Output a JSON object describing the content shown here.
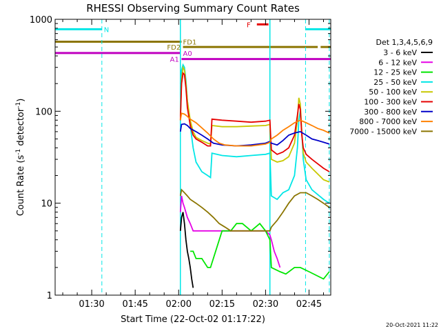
{
  "chart_data": {
    "type": "line",
    "title": "RHESSI Observing Summary Count Rates",
    "xlabel": "Start Time (22-Oct-02 01:17:22)",
    "ylabel_main": "Count Rate (s",
    "ylabel_sup": "-1",
    "ylabel_tail": " detector",
    "ylabel_sup2": "-1",
    "ylabel_close": ")",
    "yscale": "log",
    "ylim": [
      1,
      1000
    ],
    "xlim_minutes": [
      77.37,
      172.5
    ],
    "x_ticks": [
      {
        "label": "01:30",
        "t": 90
      },
      {
        "label": "01:45",
        "t": 105
      },
      {
        "label": "02:00",
        "t": 120
      },
      {
        "label": "02:15",
        "t": 135
      },
      {
        "label": "02:30",
        "t": 150
      },
      {
        "label": "02:45",
        "t": 165
      }
    ],
    "y_ticks": [
      {
        "label": "1",
        "v": 1
      },
      {
        "label": "10",
        "v": 10
      },
      {
        "label": "100",
        "v": 100
      },
      {
        "label": "1000",
        "v": 1000
      }
    ],
    "legend": {
      "header": "Det 1,3,4,5,6,9",
      "placement": "right",
      "entries": [
        {
          "label": "3 - 6 keV",
          "color": "#000000"
        },
        {
          "label": "6 - 12 keV",
          "color": "#e600e6"
        },
        {
          "label": "12 - 25 keV",
          "color": "#00e600"
        },
        {
          "label": "25 - 50 keV",
          "color": "#00e6e6"
        },
        {
          "label": "50 - 100 keV",
          "color": "#c8c800"
        },
        {
          "label": "100 - 300 keV",
          "color": "#e60000"
        },
        {
          "label": "300 - 800 keV",
          "color": "#0000c8"
        },
        {
          "label": "800 - 7000 keV",
          "color": "#ff8000"
        },
        {
          "label": "7000 - 15000 keV",
          "color": "#8b7500"
        }
      ]
    },
    "flags": [
      {
        "label": "N",
        "color": "#00e6e6",
        "y": 780,
        "segments": [
          [
            77.37,
            93.5
          ],
          [
            163.8,
            172.5
          ]
        ],
        "label_t": 94.2,
        "label_y": 780
      },
      {
        "label": "F",
        "color": "#e60000",
        "y": 880,
        "segments": [
          [
            147.0,
            151.0
          ]
        ],
        "label_t": 143.5,
        "label_y": 880
      },
      {
        "label": "FD1",
        "color": "#8b7500",
        "y": 570,
        "segments": [
          [
            77.37,
            121.0
          ]
        ],
        "label_t": 121.5,
        "label_y": 570
      },
      {
        "label": "FD2",
        "color": "#8b7500",
        "y": 500,
        "segments": [
          [
            121.5,
            168.0
          ],
          [
            169.0,
            172.5
          ]
        ],
        "label_t": 116.0,
        "label_y": 500
      },
      {
        "label": "A0",
        "color": "#c000c0",
        "y": 430,
        "segments": [
          [
            77.37,
            120.5
          ]
        ],
        "label_t": 121.5,
        "label_y": 430
      },
      {
        "label": "A1",
        "color": "#c000c0",
        "y": 370,
        "segments": [
          [
            121.0,
            172.5
          ]
        ],
        "label_t": 117.0,
        "label_y": 370
      }
    ],
    "vlines": [
      93.5,
      163.8,
      172.0
    ],
    "solid_vlines": [
      120.6,
      151.5
    ],
    "series": [
      {
        "name": "3 - 6 keV",
        "color": "#000000",
        "points": [
          [
            120.6,
            5
          ],
          [
            121,
            7
          ],
          [
            121.5,
            8
          ],
          [
            122,
            6
          ],
          [
            122.5,
            4
          ],
          [
            123,
            3
          ],
          [
            123.5,
            2.5
          ],
          [
            124,
            2
          ],
          [
            124.5,
            1.5
          ],
          [
            125,
            1.2
          ]
        ]
      },
      {
        "name": "6 - 12 keV",
        "color": "#e600e6",
        "points": [
          [
            120.6,
            8
          ],
          [
            121,
            12
          ],
          [
            121.5,
            10
          ],
          [
            122,
            9
          ],
          [
            123,
            7
          ],
          [
            124,
            6
          ],
          [
            125,
            5
          ],
          [
            126,
            5
          ],
          [
            128,
            5
          ],
          [
            130,
            5
          ],
          [
            135,
            5
          ],
          [
            140,
            5
          ],
          [
            145,
            5
          ],
          [
            150,
            5
          ],
          [
            151.5,
            4.5
          ],
          [
            152,
            4
          ],
          [
            153,
            3
          ],
          [
            154,
            2.5
          ],
          [
            155,
            2
          ]
        ]
      },
      {
        "name": "12 - 25 keV",
        "color": "#00e600",
        "points": [
          [
            124,
            3
          ],
          [
            125,
            3
          ],
          [
            126,
            2.5
          ],
          [
            128,
            2.5
          ],
          [
            130,
            2
          ],
          [
            131,
            2
          ],
          [
            135,
            5
          ],
          [
            138,
            5
          ],
          [
            140,
            6
          ],
          [
            142,
            6
          ],
          [
            145,
            5
          ],
          [
            148,
            6
          ],
          [
            150,
            5
          ],
          [
            151.5,
            4
          ],
          [
            152,
            2
          ],
          [
            155,
            1.8
          ],
          [
            157,
            1.7
          ],
          [
            160,
            2
          ],
          [
            162,
            2
          ],
          [
            165,
            1.8
          ],
          [
            170,
            1.5
          ],
          [
            172,
            1.8
          ]
        ]
      },
      {
        "name": "25 - 50 keV",
        "color": "#00e6e6",
        "points": [
          [
            120.6,
            200
          ],
          [
            121,
            280
          ],
          [
            121.5,
            320
          ],
          [
            122,
            300
          ],
          [
            122.5,
            220
          ],
          [
            123,
            130
          ],
          [
            124,
            70
          ],
          [
            125,
            40
          ],
          [
            126,
            28
          ],
          [
            128,
            22
          ],
          [
            130,
            20
          ],
          [
            131,
            19
          ],
          [
            131.5,
            35
          ],
          [
            135,
            33
          ],
          [
            140,
            32
          ],
          [
            145,
            33
          ],
          [
            150,
            34
          ],
          [
            151.5,
            35
          ],
          [
            152,
            12
          ],
          [
            154,
            11
          ],
          [
            156,
            13
          ],
          [
            158,
            14
          ],
          [
            160,
            20
          ],
          [
            161,
            40
          ],
          [
            161.5,
            80
          ],
          [
            162,
            100
          ],
          [
            162.5,
            60
          ],
          [
            163,
            30
          ],
          [
            164,
            18
          ],
          [
            166,
            14
          ],
          [
            170,
            11
          ],
          [
            172,
            10
          ]
        ]
      },
      {
        "name": "50 - 100 keV",
        "color": "#c8c800",
        "points": [
          [
            120.6,
            80
          ],
          [
            121,
            220
          ],
          [
            121.5,
            300
          ],
          [
            122,
            280
          ],
          [
            122.5,
            200
          ],
          [
            123,
            130
          ],
          [
            124,
            80
          ],
          [
            125,
            60
          ],
          [
            126,
            52
          ],
          [
            128,
            48
          ],
          [
            130,
            45
          ],
          [
            131,
            44
          ],
          [
            131.5,
            70
          ],
          [
            135,
            68
          ],
          [
            140,
            68
          ],
          [
            145,
            69
          ],
          [
            150,
            70
          ],
          [
            151.5,
            72
          ],
          [
            152,
            30
          ],
          [
            154,
            28
          ],
          [
            156,
            29
          ],
          [
            158,
            32
          ],
          [
            160,
            45
          ],
          [
            161,
            80
          ],
          [
            161.5,
            140
          ],
          [
            162,
            120
          ],
          [
            162.5,
            60
          ],
          [
            163,
            35
          ],
          [
            164,
            28
          ],
          [
            166,
            24
          ],
          [
            170,
            18
          ],
          [
            172,
            17
          ]
        ]
      },
      {
        "name": "100 - 300 keV",
        "color": "#e60000",
        "points": [
          [
            120.6,
            80
          ],
          [
            121,
            200
          ],
          [
            121.5,
            260
          ],
          [
            122,
            250
          ],
          [
            122.5,
            180
          ],
          [
            123,
            110
          ],
          [
            124,
            70
          ],
          [
            125,
            55
          ],
          [
            126,
            50
          ],
          [
            128,
            46
          ],
          [
            130,
            42
          ],
          [
            131,
            42
          ],
          [
            131.5,
            82
          ],
          [
            135,
            80
          ],
          [
            140,
            78
          ],
          [
            145,
            76
          ],
          [
            150,
            78
          ],
          [
            151.5,
            80
          ],
          [
            152,
            38
          ],
          [
            154,
            34
          ],
          [
            156,
            36
          ],
          [
            158,
            40
          ],
          [
            160,
            55
          ],
          [
            161,
            90
          ],
          [
            161.5,
            120
          ],
          [
            162,
            105
          ],
          [
            162.5,
            55
          ],
          [
            163,
            40
          ],
          [
            164,
            34
          ],
          [
            166,
            30
          ],
          [
            170,
            24
          ],
          [
            172,
            22
          ]
        ]
      },
      {
        "name": "300 - 800 keV",
        "color": "#0000c8",
        "points": [
          [
            120.6,
            60
          ],
          [
            121,
            72
          ],
          [
            122,
            73
          ],
          [
            123,
            70
          ],
          [
            124,
            65
          ],
          [
            126,
            60
          ],
          [
            128,
            55
          ],
          [
            130,
            50
          ],
          [
            132,
            45
          ],
          [
            135,
            43
          ],
          [
            140,
            42
          ],
          [
            145,
            43
          ],
          [
            150,
            45
          ],
          [
            151.5,
            47
          ],
          [
            152,
            45
          ],
          [
            154,
            43
          ],
          [
            156,
            48
          ],
          [
            158,
            55
          ],
          [
            160,
            58
          ],
          [
            162,
            60
          ],
          [
            164,
            55
          ],
          [
            166,
            50
          ],
          [
            168,
            48
          ],
          [
            170,
            46
          ],
          [
            172,
            44
          ]
        ]
      },
      {
        "name": "800 - 7000 keV",
        "color": "#ff8000",
        "points": [
          [
            120.6,
            80
          ],
          [
            121,
            95
          ],
          [
            122,
            93
          ],
          [
            123,
            88
          ],
          [
            124,
            82
          ],
          [
            126,
            75
          ],
          [
            128,
            66
          ],
          [
            130,
            58
          ],
          [
            132,
            50
          ],
          [
            134,
            45
          ],
          [
            136,
            43
          ],
          [
            140,
            42
          ],
          [
            145,
            42
          ],
          [
            150,
            44
          ],
          [
            151.5,
            46
          ],
          [
            152,
            50
          ],
          [
            154,
            55
          ],
          [
            156,
            62
          ],
          [
            158,
            68
          ],
          [
            160,
            75
          ],
          [
            162,
            80
          ],
          [
            164,
            75
          ],
          [
            166,
            70
          ],
          [
            168,
            65
          ],
          [
            170,
            62
          ],
          [
            172,
            58
          ]
        ]
      },
      {
        "name": "7000 - 15000 keV",
        "color": "#8b7500",
        "points": [
          [
            120.6,
            12
          ],
          [
            121,
            14
          ],
          [
            122,
            13
          ],
          [
            123,
            12
          ],
          [
            124,
            11
          ],
          [
            126,
            10
          ],
          [
            128,
            9
          ],
          [
            130,
            8
          ],
          [
            132,
            7
          ],
          [
            134,
            6
          ],
          [
            136,
            5.5
          ],
          [
            138,
            5
          ],
          [
            140,
            5
          ],
          [
            145,
            5
          ],
          [
            150,
            5
          ],
          [
            151.5,
            5
          ],
          [
            152,
            5.5
          ],
          [
            154,
            6.5
          ],
          [
            156,
            8
          ],
          [
            158,
            10
          ],
          [
            160,
            12
          ],
          [
            162,
            13
          ],
          [
            164,
            13
          ],
          [
            166,
            12
          ],
          [
            168,
            11
          ],
          [
            170,
            10
          ],
          [
            172,
            9
          ]
        ]
      }
    ]
  },
  "footer": {
    "timestamp": "20-Oct-2021 11:22"
  }
}
